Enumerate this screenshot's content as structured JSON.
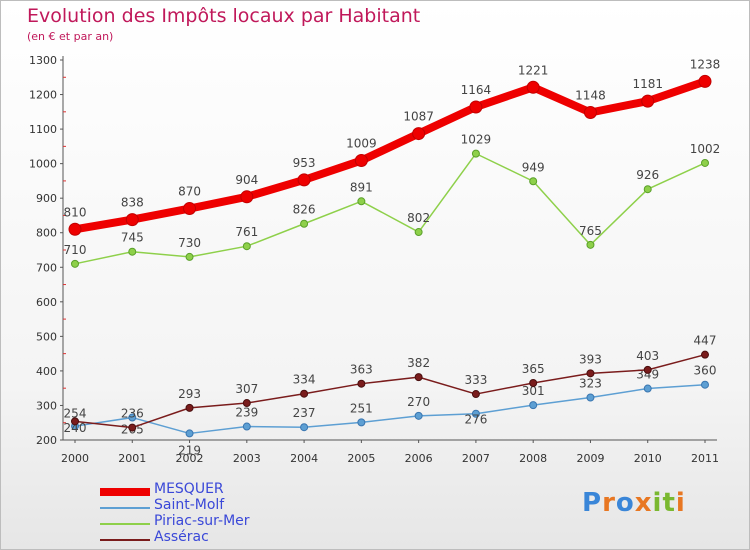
{
  "header": {
    "title": "Evolution des Impôts locaux par Habitant",
    "subtitle": "(en € et par an)"
  },
  "chart_data": {
    "type": "line",
    "title": "Evolution des Impôts locaux par Habitant",
    "subtitle": "(en € et par an)",
    "xlabel": "",
    "ylabel": "",
    "x": [
      "2000",
      "2001",
      "2002",
      "2003",
      "2004",
      "2005",
      "2006",
      "2007",
      "2008",
      "2009",
      "2010",
      "2011"
    ],
    "ylim": [
      200,
      1300
    ],
    "yticks": [
      200,
      300,
      400,
      500,
      600,
      700,
      800,
      900,
      1000,
      1100,
      1200,
      1300
    ],
    "grid": false,
    "legend_position": "bottom-left",
    "series": [
      {
        "name": "MESQUER",
        "color": "#ee0000",
        "values": [
          810,
          838,
          870,
          904,
          953,
          1009,
          1087,
          1164,
          1221,
          1148,
          1181,
          1238
        ]
      },
      {
        "name": "Saint-Molf",
        "color": "#5d9fd3",
        "values": [
          240,
          265,
          219,
          239,
          237,
          251,
          270,
          276,
          301,
          323,
          349,
          360
        ]
      },
      {
        "name": "Piriac-sur-Mer",
        "color": "#8ed04a",
        "values": [
          710,
          745,
          730,
          761,
          826,
          891,
          802,
          1029,
          949,
          765,
          926,
          1002
        ]
      },
      {
        "name": "Assérac",
        "color": "#7a1c1c",
        "values": [
          254,
          236,
          293,
          307,
          334,
          363,
          382,
          333,
          365,
          393,
          403,
          447
        ]
      }
    ]
  },
  "logo": {
    "letters": [
      "P",
      "r",
      "o",
      "x",
      "i",
      "t",
      "i"
    ],
    "colors": [
      "#3a86d8",
      "#e87722",
      "#3a86d8",
      "#e87722",
      "#7ab830",
      "#7ab830",
      "#e87722"
    ]
  }
}
